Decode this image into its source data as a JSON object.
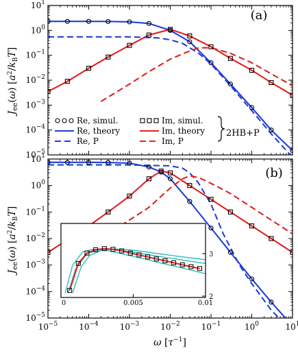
{
  "chart_data": [
    {
      "panel_label": "(a)",
      "type": "line",
      "xscale": "log",
      "yscale": "log",
      "xlim": [
        1e-05,
        10
      ],
      "ylim": [
        1e-05,
        10
      ],
      "ylabel": "J_ee(ω) [a²/k_BT]",
      "xtick_labels": [
        "10^-5",
        "10^-4",
        "10^-3",
        "10^-2",
        "10^-1",
        "10^0",
        "10^1"
      ],
      "ytick_labels": [
        "10^-5",
        "10^-4",
        "10^-3",
        "10^-2",
        "10^-1",
        "10^0",
        "10^1"
      ],
      "legend": {
        "entries": [
          "Re, simul.",
          "Im, simul.",
          "Re, theory",
          "Im, theory",
          "Re, P",
          "Im, P"
        ],
        "group_label": "2HB+P",
        "placement": "lower-left"
      },
      "series": [
        {
          "name": "Re, simul.",
          "style": "circles",
          "color": "#000000",
          "x": [
            1e-05,
            3e-05,
            0.0001,
            0.0003,
            0.001,
            0.003,
            0.01,
            0.03,
            0.1,
            0.3,
            1,
            3,
            10
          ],
          "y": [
            2.3,
            2.3,
            2.3,
            2.28,
            2.2,
            1.9,
            1.0,
            0.35,
            0.05,
            0.007,
            0.0008,
            0.0001,
            1.5e-05
          ]
        },
        {
          "name": "Im, simul.",
          "style": "squares",
          "color": "#000000",
          "x": [
            1e-05,
            3e-05,
            0.0001,
            0.0003,
            0.001,
            0.003,
            0.01,
            0.03,
            0.1,
            0.3,
            1,
            3,
            10
          ],
          "y": [
            0.0035,
            0.009,
            0.03,
            0.085,
            0.25,
            0.65,
            1.1,
            0.6,
            0.22,
            0.075,
            0.025,
            0.008,
            0.0025
          ]
        },
        {
          "name": "Re, theory",
          "style": "solid",
          "color": "#1f3fd8",
          "x": [
            1e-05,
            3e-05,
            0.0001,
            0.0003,
            0.001,
            0.003,
            0.01,
            0.03,
            0.1,
            0.3,
            1,
            3,
            10
          ],
          "y": [
            2.3,
            2.3,
            2.3,
            2.28,
            2.2,
            1.9,
            1.0,
            0.35,
            0.05,
            0.007,
            0.0008,
            0.0001,
            1.5e-05
          ]
        },
        {
          "name": "Im, theory",
          "style": "solid",
          "color": "#e02020",
          "x": [
            1e-05,
            3e-05,
            0.0001,
            0.0003,
            0.001,
            0.003,
            0.01,
            0.03,
            0.1,
            0.3,
            1,
            3,
            10
          ],
          "y": [
            0.0035,
            0.009,
            0.03,
            0.085,
            0.25,
            0.65,
            1.1,
            0.6,
            0.22,
            0.075,
            0.025,
            0.008,
            0.0025
          ]
        },
        {
          "name": "Re, P",
          "style": "dashed",
          "color": "#1f3fd8",
          "x": [
            1e-05,
            0.0001,
            0.001,
            0.005,
            0.01,
            0.02,
            0.05,
            0.1,
            0.3,
            1,
            3,
            10
          ],
          "y": [
            0.55,
            0.55,
            0.55,
            0.5,
            0.42,
            0.3,
            0.12,
            0.045,
            0.006,
            0.0006,
            7e-05,
            8e-06
          ]
        },
        {
          "name": "Im, P",
          "style": "dashed",
          "color": "#e02020",
          "x": [
            0.0002,
            0.0005,
            0.001,
            0.003,
            0.01,
            0.03,
            0.05,
            0.1,
            0.3,
            1,
            3,
            10
          ],
          "y": [
            0.0014,
            0.0035,
            0.007,
            0.022,
            0.07,
            0.15,
            0.2,
            0.2,
            0.12,
            0.05,
            0.018,
            0.006
          ]
        }
      ]
    },
    {
      "panel_label": "(b)",
      "type": "line",
      "xscale": "log",
      "yscale": "log",
      "xlim": [
        1e-05,
        10
      ],
      "ylim": [
        1e-05,
        10
      ],
      "xlabel": "ω [τ⁻¹]",
      "ylabel": "J_ee(ω) [a²/k_BT]",
      "xtick_labels": [
        "10^-5",
        "10^-4",
        "10^-3",
        "10^-2",
        "10^-1",
        "10^0",
        "10^1"
      ],
      "ytick_labels": [
        "10^-5",
        "10^-4",
        "10^-3",
        "10^-2",
        "10^-1",
        "10^0",
        "10^1"
      ],
      "series": [
        {
          "name": "Re, simul.",
          "style": "circles",
          "color": "#000000",
          "x": [
            1e-05,
            3e-05,
            0.0001,
            0.0003,
            0.001,
            0.003,
            0.006,
            0.01,
            0.03,
            0.1,
            0.3,
            1,
            3,
            10
          ],
          "y": [
            7.5,
            7.5,
            7.5,
            7.4,
            7.0,
            5.0,
            3.2,
            1.8,
            0.25,
            0.025,
            0.003,
            0.0003,
            4e-05,
            5e-06
          ]
        },
        {
          "name": "Im, simul.",
          "style": "squares",
          "color": "#000000",
          "x": [
            1e-05,
            3e-05,
            0.0001,
            0.0003,
            0.001,
            0.003,
            0.006,
            0.01,
            0.03,
            0.1,
            0.3,
            1,
            3,
            10
          ],
          "y": [
            0.003,
            0.009,
            0.03,
            0.1,
            0.4,
            1.8,
            3.5,
            3.0,
            1.0,
            0.3,
            0.1,
            0.03,
            0.01,
            0.003
          ]
        },
        {
          "name": "Re, theory",
          "style": "solid",
          "color": "#1f3fd8",
          "x": [
            1e-05,
            3e-05,
            0.0001,
            0.0003,
            0.001,
            0.003,
            0.006,
            0.01,
            0.03,
            0.1,
            0.3,
            1,
            3,
            10
          ],
          "y": [
            7.5,
            7.5,
            7.5,
            7.4,
            7.0,
            5.0,
            3.2,
            1.8,
            0.25,
            0.025,
            0.003,
            0.0003,
            4e-05,
            5e-06
          ]
        },
        {
          "name": "Im, theory",
          "style": "solid",
          "color": "#e02020",
          "x": [
            1e-05,
            3e-05,
            0.0001,
            0.0003,
            0.001,
            0.003,
            0.006,
            0.01,
            0.03,
            0.1,
            0.3,
            1,
            3,
            10
          ],
          "y": [
            0.003,
            0.009,
            0.03,
            0.1,
            0.4,
            1.8,
            3.5,
            3.0,
            1.0,
            0.3,
            0.1,
            0.03,
            0.01,
            0.003
          ]
        },
        {
          "name": "Re, P",
          "style": "dashed",
          "color": "#1f3fd8",
          "x": [
            1e-05,
            0.0001,
            0.001,
            0.01,
            0.02,
            0.03,
            0.05,
            0.1,
            0.2,
            0.5,
            1,
            3,
            10
          ],
          "y": [
            6.0,
            6.0,
            6.0,
            5.5,
            4.5,
            3.0,
            1.2,
            0.2,
            0.015,
            0.001,
            0.0002,
            2e-05,
            3e-06
          ]
        },
        {
          "name": "Im, P",
          "style": "dashed",
          "color": "#e02020",
          "x": [
            0.0001,
            0.0003,
            0.001,
            0.003,
            0.01,
            0.02,
            0.03,
            0.05,
            0.1,
            0.3,
            1,
            3,
            10
          ],
          "y": [
            0.005,
            0.015,
            0.05,
            0.15,
            0.8,
            1.8,
            2.3,
            2.0,
            1.2,
            0.5,
            0.15,
            0.05,
            0.015
          ]
        }
      ],
      "inset": {
        "xscale": "linear",
        "yscale": "log",
        "xlim": [
          0,
          0.01
        ],
        "ylim": [
          1e-05,
          1
        ],
        "xtick_labels": [
          "0",
          "0.005",
          "0.01"
        ],
        "right_tick_labels": [
          "2",
          "3"
        ],
        "series": [
          {
            "name": "Im, simul.",
            "style": "squares",
            "color": "#000000",
            "x": [
              0.0006,
              0.0012,
              0.0018,
              0.0024,
              0.003,
              0.0036,
              0.0042,
              0.0048,
              0.0054,
              0.006,
              0.0066,
              0.0072,
              0.0078,
              0.0084,
              0.009,
              0.0096
            ],
            "y": [
              3e-05,
              0.002,
              0.01,
              0.017,
              0.02,
              0.018,
              0.014,
              0.01,
              0.0075,
              0.0055,
              0.004,
              0.003,
              0.0022,
              0.0016,
              0.0012,
              0.0009
            ]
          },
          {
            "name": "Im, theory",
            "style": "solid",
            "color": "#e02020",
            "x": [
              0.0006,
              0.0012,
              0.0018,
              0.0024,
              0.003,
              0.0036,
              0.0042,
              0.0048,
              0.0054,
              0.006,
              0.0066,
              0.0072,
              0.0078,
              0.0084,
              0.009,
              0.0096
            ],
            "y": [
              3e-05,
              0.002,
              0.01,
              0.017,
              0.02,
              0.018,
              0.014,
              0.01,
              0.0075,
              0.0055,
              0.004,
              0.003,
              0.0022,
              0.0016,
              0.0012,
              0.0009
            ]
          },
          {
            "style": "solid",
            "color": "#20b8b8",
            "x": [
              0.0003,
              0.0008,
              0.0015,
              0.0022,
              0.003,
              0.004,
              0.005,
              0.006,
              0.007,
              0.008,
              0.009,
              0.01
            ],
            "y": [
              2e-05,
              0.0015,
              0.012,
              0.018,
              0.016,
              0.01,
              0.006,
              0.0035,
              0.002,
              0.0012,
              0.0007,
              0.0004
            ]
          },
          {
            "style": "solid",
            "color": "#20b8b8",
            "x": [
              0.0005,
              0.001,
              0.0018,
              0.0026,
              0.0034,
              0.0044,
              0.0054,
              0.0064,
              0.0074,
              0.0084,
              0.0094,
              0.01
            ],
            "y": [
              2e-05,
              0.0008,
              0.009,
              0.016,
              0.018,
              0.014,
              0.01,
              0.0068,
              0.0048,
              0.0034,
              0.0024,
              0.002
            ]
          },
          {
            "style": "solid",
            "color": "#20b8b8",
            "x": [
              0.0008,
              0.0014,
              0.002,
              0.0028,
              0.0036,
              0.0046,
              0.0056,
              0.0066,
              0.0076,
              0.0086,
              0.0096,
              0.01
            ],
            "y": [
              2e-05,
              0.0012,
              0.007,
              0.015,
              0.019,
              0.017,
              0.013,
              0.0095,
              0.007,
              0.0052,
              0.004,
              0.0035
            ]
          }
        ]
      }
    }
  ]
}
